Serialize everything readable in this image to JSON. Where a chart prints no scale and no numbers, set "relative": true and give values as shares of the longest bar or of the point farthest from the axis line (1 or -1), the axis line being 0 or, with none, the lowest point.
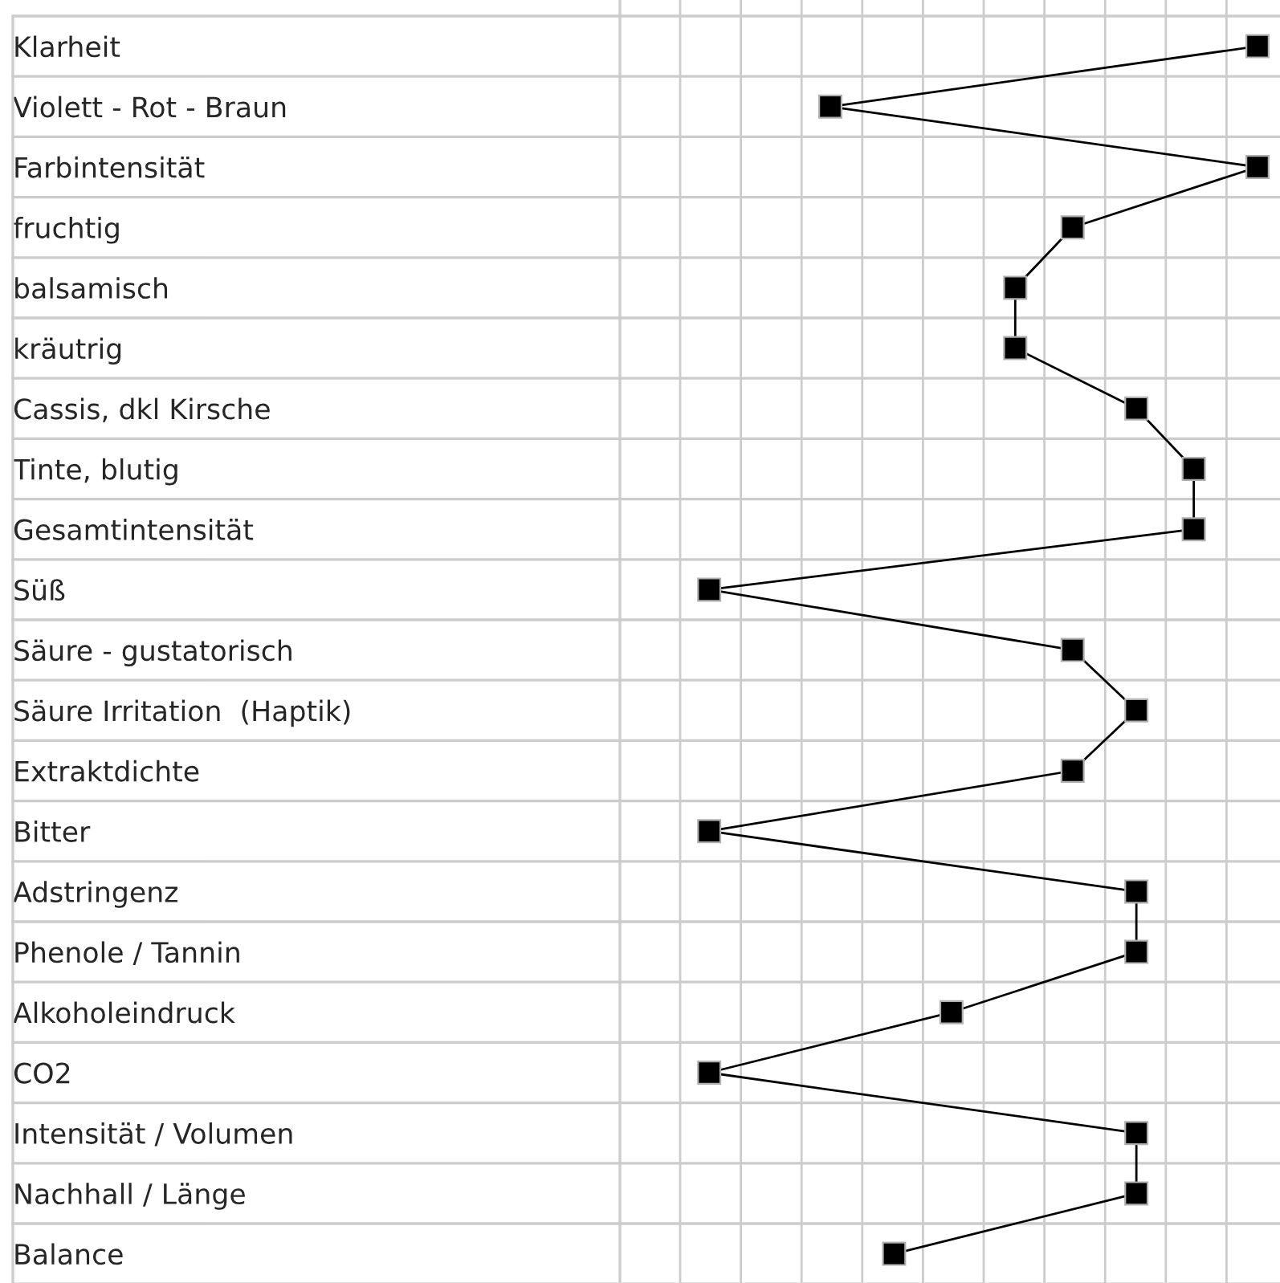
{
  "chart_data": {
    "type": "line",
    "orientation": "horizontal",
    "relative": true,
    "marker": "square",
    "line_style": "solid",
    "grid": true,
    "color": "#000000",
    "categories": [
      "Klarheit",
      "Violett - Rot - Braun",
      "Farbintensität",
      "fruchtig",
      "balsamisch",
      "kräutrig",
      "Cassis, dkl Kirsche",
      "Tinte, blutig",
      "Gesamtintensität",
      "Süß",
      "Säure - gustatorisch",
      "Säure Irritation  (Haptik)",
      "Extraktdichte",
      "Bitter",
      "Adstringenz",
      "Phenole / Tannin",
      "Alkoholeindruck",
      "CO2",
      "Intensität / Volumen",
      "Nachhall / Länge",
      "Balance"
    ],
    "values": [
      1.0,
      0.33,
      1.0,
      0.71,
      0.62,
      0.62,
      0.81,
      0.9,
      0.9,
      0.14,
      0.71,
      0.81,
      0.71,
      0.14,
      0.81,
      0.81,
      0.52,
      0.14,
      0.81,
      0.81,
      0.43
    ]
  }
}
